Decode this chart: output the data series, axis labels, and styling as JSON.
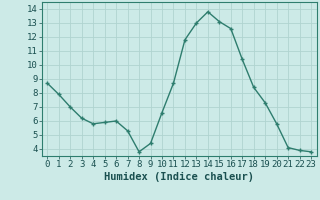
{
  "x": [
    0,
    1,
    2,
    3,
    4,
    5,
    6,
    7,
    8,
    9,
    10,
    11,
    12,
    13,
    14,
    15,
    16,
    17,
    18,
    19,
    20,
    21,
    22,
    23
  ],
  "y": [
    8.7,
    7.9,
    7.0,
    6.2,
    5.8,
    5.9,
    6.0,
    5.3,
    3.8,
    4.4,
    6.6,
    8.7,
    11.8,
    13.0,
    13.8,
    13.1,
    12.6,
    10.4,
    8.4,
    7.3,
    5.8,
    4.1,
    3.9,
    3.8
  ],
  "line_color": "#2e7d6e",
  "marker": "+",
  "marker_size": 3.5,
  "line_width": 1.0,
  "background_color": "#cceae7",
  "plot_bg_color": "#cceae7",
  "bottom_bar_color": "#8ab8b4",
  "grid_color": "#b0d4d0",
  "xlabel": "Humidex (Indice chaleur)",
  "xlim": [
    -0.5,
    23.5
  ],
  "ylim": [
    3.5,
    14.5
  ],
  "yticks": [
    4,
    5,
    6,
    7,
    8,
    9,
    10,
    11,
    12,
    13,
    14
  ],
  "xticks": [
    0,
    1,
    2,
    3,
    4,
    5,
    6,
    7,
    8,
    9,
    10,
    11,
    12,
    13,
    14,
    15,
    16,
    17,
    18,
    19,
    20,
    21,
    22,
    23
  ],
  "xlabel_fontsize": 7.5,
  "tick_fontsize": 6.5,
  "tick_color": "#1a5050",
  "axis_label_color": "#1a5050",
  "spine_color": "#2e7d6e"
}
